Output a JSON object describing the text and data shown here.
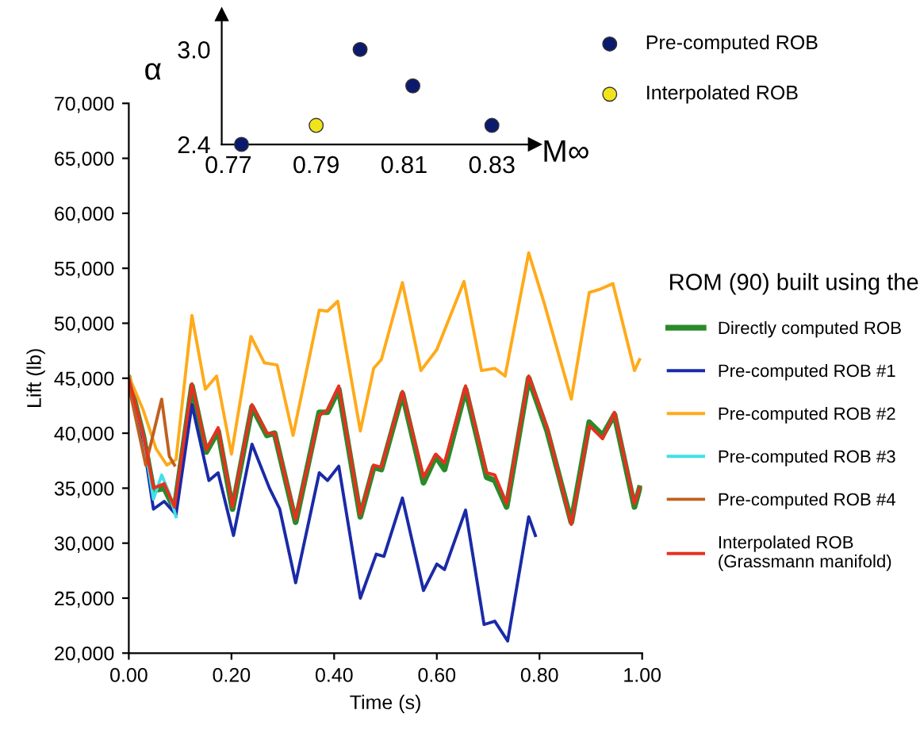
{
  "chart_data": [
    {
      "type": "scatter",
      "xlabel": "M∞",
      "ylabel": "α",
      "xlim": [
        0.7685,
        0.8397
      ],
      "ylim": [
        2.4,
        3.22
      ],
      "xticks": [
        0.77,
        0.79,
        0.81,
        0.83
      ],
      "yticks": [
        {
          "value": 2.4,
          "label": "2.4"
        },
        {
          "value": 3.0,
          "label": "3.0"
        }
      ],
      "marker": "circle",
      "legend": "right",
      "grid": false,
      "series": [
        {
          "name": "Pre-computed ROB",
          "color": "#0c1a6e",
          "x": [
            0.773,
            0.8,
            0.812,
            0.83
          ],
          "values": [
            2.4,
            3.0,
            2.77,
            2.52
          ]
        },
        {
          "name": "Interpolated ROB",
          "color": "#f2e41c",
          "x": [
            0.79
          ],
          "values": [
            2.52
          ]
        }
      ]
    },
    {
      "type": "line",
      "xlabel": "Time (s)",
      "ylabel": "Lift (lb)",
      "legend_title": "ROM (90) built using the",
      "xlim": [
        0,
        1
      ],
      "ylim": [
        20000,
        70000
      ],
      "xticks": [
        {
          "value": 0,
          "label": "0.00"
        },
        {
          "value": 0.2,
          "label": "0.20"
        },
        {
          "value": 0.4,
          "label": "0.40"
        },
        {
          "value": 0.6,
          "label": "0.60"
        },
        {
          "value": 0.8,
          "label": "0.80"
        },
        {
          "value": 1.0,
          "label": "1.00"
        }
      ],
      "yticks": [
        {
          "value": 20000,
          "label": "20,000"
        },
        {
          "value": 25000,
          "label": "25,000"
        },
        {
          "value": 30000,
          "label": "30,000"
        },
        {
          "value": 35000,
          "label": "35,000"
        },
        {
          "value": 40000,
          "label": "40,000"
        },
        {
          "value": 45000,
          "label": "45,000"
        },
        {
          "value": 50000,
          "label": "50,000"
        },
        {
          "value": 55000,
          "label": "55,000"
        },
        {
          "value": 60000,
          "label": "60,000"
        },
        {
          "value": 65000,
          "label": "65,000"
        },
        {
          "value": 70000,
          "label": "70,000"
        }
      ],
      "legend": "right",
      "grid": false,
      "marker": "none",
      "line_style": "solid",
      "series": [
        {
          "name": "Directly computed ROB",
          "color": "#2a8a2a",
          "x": [
            0,
            0.028,
            0.048,
            0.069,
            0.089,
            0.123,
            0.151,
            0.174,
            0.202,
            0.24,
            0.269,
            0.284,
            0.325,
            0.371,
            0.387,
            0.409,
            0.451,
            0.477,
            0.492,
            0.533,
            0.574,
            0.598,
            0.615,
            0.656,
            0.697,
            0.713,
            0.736,
            0.779,
            0.815,
            0.862,
            0.897,
            0.923,
            0.946,
            0.985,
            0.995
          ],
          "values": [
            45000,
            39800,
            34800,
            35000,
            33100,
            44300,
            38300,
            40200,
            33100,
            42400,
            39800,
            40000,
            31900,
            41900,
            41900,
            44000,
            32400,
            36900,
            36700,
            43600,
            35500,
            37900,
            36700,
            44000,
            36000,
            35700,
            33300,
            45000,
            40200,
            31900,
            41000,
            39800,
            41700,
            33300,
            35000
          ]
        },
        {
          "name": "Pre-computed ROB #1",
          "color": "#1a2aa8",
          "x": [
            0,
            0.028,
            0.048,
            0.069,
            0.092,
            0.123,
            0.156,
            0.174,
            0.204,
            0.24,
            0.274,
            0.294,
            0.325,
            0.371,
            0.387,
            0.409,
            0.451,
            0.482,
            0.497,
            0.533,
            0.574,
            0.6,
            0.615,
            0.656,
            0.692,
            0.713,
            0.738,
            0.779,
            0.792
          ],
          "values": [
            45000,
            39300,
            33100,
            33800,
            32600,
            42600,
            35700,
            36400,
            30700,
            39000,
            35000,
            33100,
            26400,
            36400,
            35700,
            37000,
            25000,
            29000,
            28800,
            34100,
            25700,
            28100,
            27600,
            33000,
            22600,
            22900,
            21100,
            32400,
            30700
          ]
        },
        {
          "name": "Pre-computed ROB #2",
          "color": "#ffaa1a",
          "x": [
            0,
            0.028,
            0.053,
            0.074,
            0.092,
            0.123,
            0.149,
            0.171,
            0.2,
            0.238,
            0.264,
            0.289,
            0.32,
            0.371,
            0.387,
            0.407,
            0.451,
            0.477,
            0.492,
            0.533,
            0.569,
            0.6,
            0.653,
            0.687,
            0.713,
            0.733,
            0.779,
            0.81,
            0.862,
            0.897,
            0.918,
            0.943,
            0.985,
            0.995
          ],
          "values": [
            45200,
            42100,
            38600,
            37100,
            37600,
            50700,
            44000,
            45200,
            38100,
            48800,
            46400,
            46200,
            39800,
            51200,
            51100,
            52000,
            40200,
            45900,
            46700,
            53700,
            45700,
            47600,
            53800,
            45700,
            45900,
            45200,
            56400,
            51700,
            43100,
            52800,
            53100,
            53600,
            45700,
            46700
          ]
        },
        {
          "name": "Pre-computed ROB #3",
          "color": "#40e0e8",
          "x": [
            0,
            0.028,
            0.048,
            0.064,
            0.079,
            0.092
          ],
          "values": [
            45000,
            39800,
            34000,
            36200,
            34500,
            32400
          ]
        },
        {
          "name": "Pre-computed ROB #4",
          "color": "#c06020",
          "x": [
            0,
            0.033,
            0.064,
            0.079,
            0.089
          ],
          "values": [
            44300,
            37100,
            43100,
            37900,
            37100
          ]
        },
        {
          "name": "Interpolated ROB\n(Grassmann manifold)",
          "color": "#e83020",
          "x": [
            0,
            0.028,
            0.048,
            0.069,
            0.089,
            0.123,
            0.151,
            0.174,
            0.202,
            0.24,
            0.269,
            0.284,
            0.325,
            0.371,
            0.387,
            0.409,
            0.451,
            0.477,
            0.492,
            0.533,
            0.574,
            0.598,
            0.615,
            0.656,
            0.697,
            0.713,
            0.736,
            0.779,
            0.815,
            0.862,
            0.897,
            0.923,
            0.946,
            0.985,
            0.995
          ],
          "values": [
            45000,
            39900,
            35000,
            35400,
            33300,
            44500,
            38500,
            40500,
            33300,
            42600,
            40000,
            40000,
            32200,
            41600,
            42100,
            44300,
            32600,
            37100,
            36900,
            43800,
            36000,
            38100,
            37300,
            44300,
            36400,
            36200,
            33600,
            45200,
            40500,
            31700,
            40700,
            39500,
            41900,
            33600,
            35000
          ]
        }
      ]
    }
  ]
}
